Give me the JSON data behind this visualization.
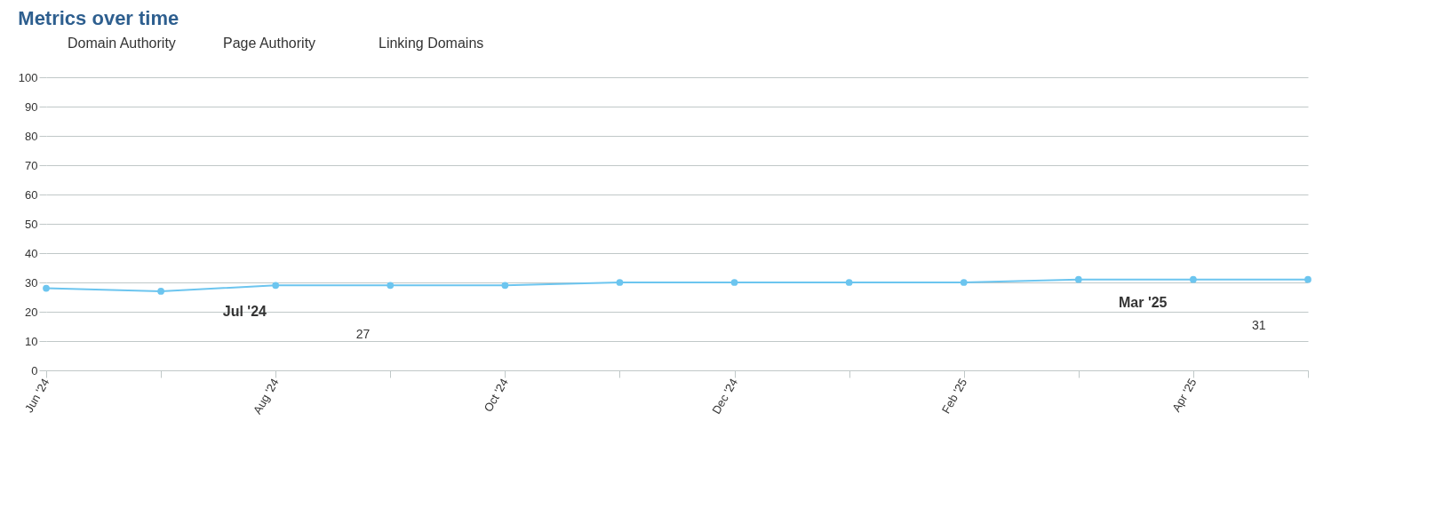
{
  "chart_data": {
    "type": "line",
    "title": "Metrics over time",
    "categories": [
      "Jun '24",
      null,
      "Aug '24",
      null,
      "Oct '24",
      null,
      "Dec '24",
      null,
      "Feb '25",
      null,
      "Apr '25",
      null
    ],
    "series": [
      {
        "color": "#6cc5ef",
        "values": [
          28,
          27,
          29,
          29,
          29,
          30,
          30,
          30,
          30,
          31,
          31,
          31
        ]
      }
    ],
    "ylim": [
      0,
      100
    ],
    "yticks": [
      0,
      10,
      20,
      30,
      40,
      50,
      60,
      70,
      80,
      90,
      100
    ],
    "grid": "y",
    "marker": "circle",
    "line_style": "solid",
    "annotations": [
      "Jul '24",
      "27",
      "Mar '25",
      "31",
      "Domain Authority",
      "Page Authority",
      "Linking Domains"
    ]
  }
}
